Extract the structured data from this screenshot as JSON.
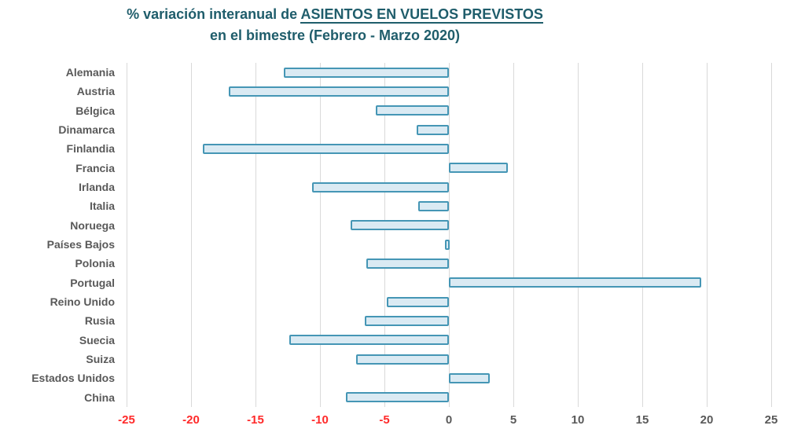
{
  "title": {
    "line1_prefix": "% variación interanual de ",
    "line1_underlined": "ASIENTOS EN VUELOS PREVISTOS",
    "line2": "en el bimestre (Febrero - Marzo 2020)"
  },
  "colors": {
    "title": "#1f5d6b",
    "category_label": "#595959",
    "tick_negative": "#ff2a2a",
    "tick_positive": "#595959",
    "bar_fill": "#daeaf3",
    "bar_border": "#4596b5",
    "gridline": "#d9d9d9"
  },
  "chart_data": {
    "type": "bar",
    "orientation": "horizontal",
    "title": "% variación interanual de ASIENTOS EN VUELOS PREVISTOS en el bimestre (Febrero - Marzo 2020)",
    "categories": [
      "Alemania",
      "Austria",
      "Bélgica",
      "Dinamarca",
      "Finlandia",
      "Francia",
      "Irlanda",
      "Italia",
      "Noruega",
      "Países Bajos",
      "Polonia",
      "Portugal",
      "Reino Unido",
      "Rusia",
      "Suecia",
      "Suiza",
      "Estados Unidos",
      "China"
    ],
    "values": [
      -12.8,
      -17.1,
      -5.7,
      -2.5,
      -19.1,
      4.6,
      -10.6,
      -2.4,
      -7.6,
      -0.3,
      -6.4,
      19.6,
      -4.8,
      -6.5,
      -12.4,
      -7.2,
      3.2,
      -8.0
    ],
    "xlabel": "",
    "ylabel": "",
    "xlim": [
      -25,
      25
    ],
    "xticks": [
      -25,
      -20,
      -15,
      -10,
      -5,
      0,
      5,
      10,
      15,
      20,
      25
    ],
    "grid": "vertical",
    "legend": false
  }
}
